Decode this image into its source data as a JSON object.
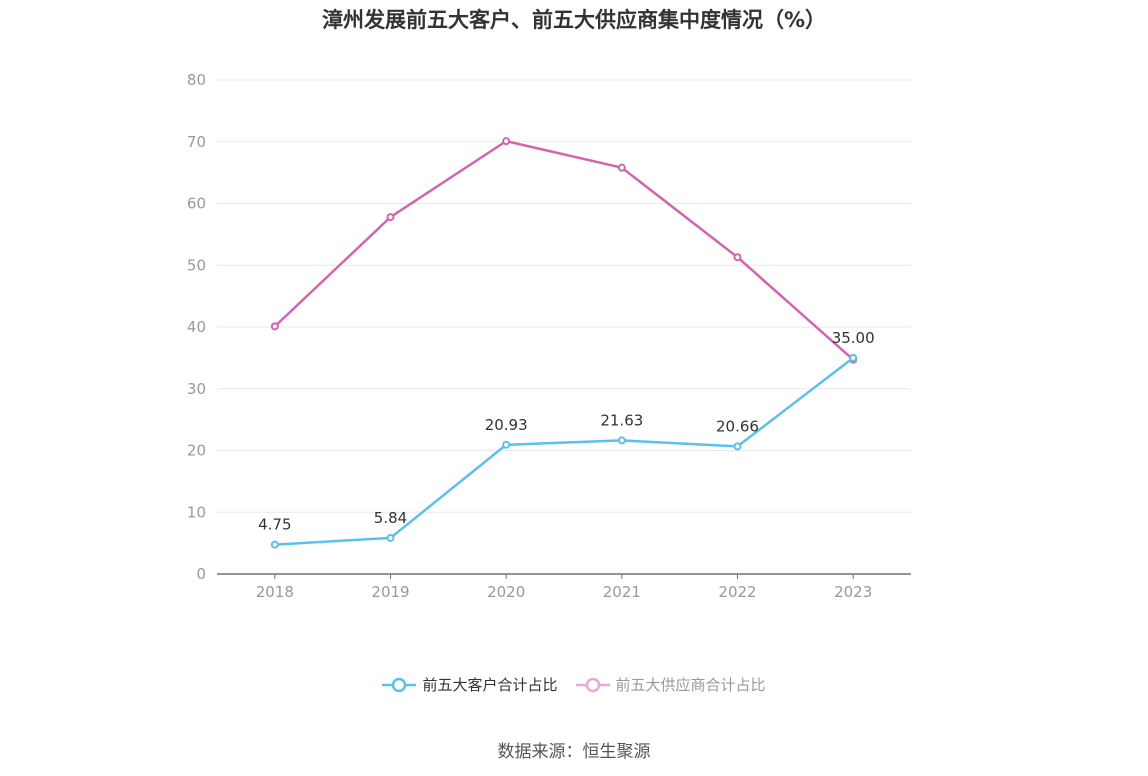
{
  "chart_data": {
    "type": "line",
    "title": "漳州发展前五大客户、前五大供应商集中度情况（%）",
    "categories": [
      "2018",
      "2019",
      "2020",
      "2021",
      "2022",
      "2023"
    ],
    "ylim": [
      0,
      80
    ],
    "yticks": [
      0,
      10,
      20,
      30,
      40,
      50,
      60,
      70,
      80
    ],
    "grid": true,
    "legend_position": "bottom",
    "series": [
      {
        "name": "前五大客户合计占比",
        "color": "#5bc0eb",
        "values": [
          4.75,
          5.84,
          20.93,
          21.63,
          20.66,
          35.0
        ],
        "labels": [
          "4.75",
          "5.84",
          "20.93",
          "21.63",
          "20.66",
          "35.00"
        ]
      },
      {
        "name": "前五大供应商合计占比",
        "color": "#d264b0",
        "values": [
          40.1,
          57.8,
          70.1,
          65.8,
          51.3,
          34.7
        ]
      }
    ],
    "source": "数据来源：恒生聚源"
  }
}
